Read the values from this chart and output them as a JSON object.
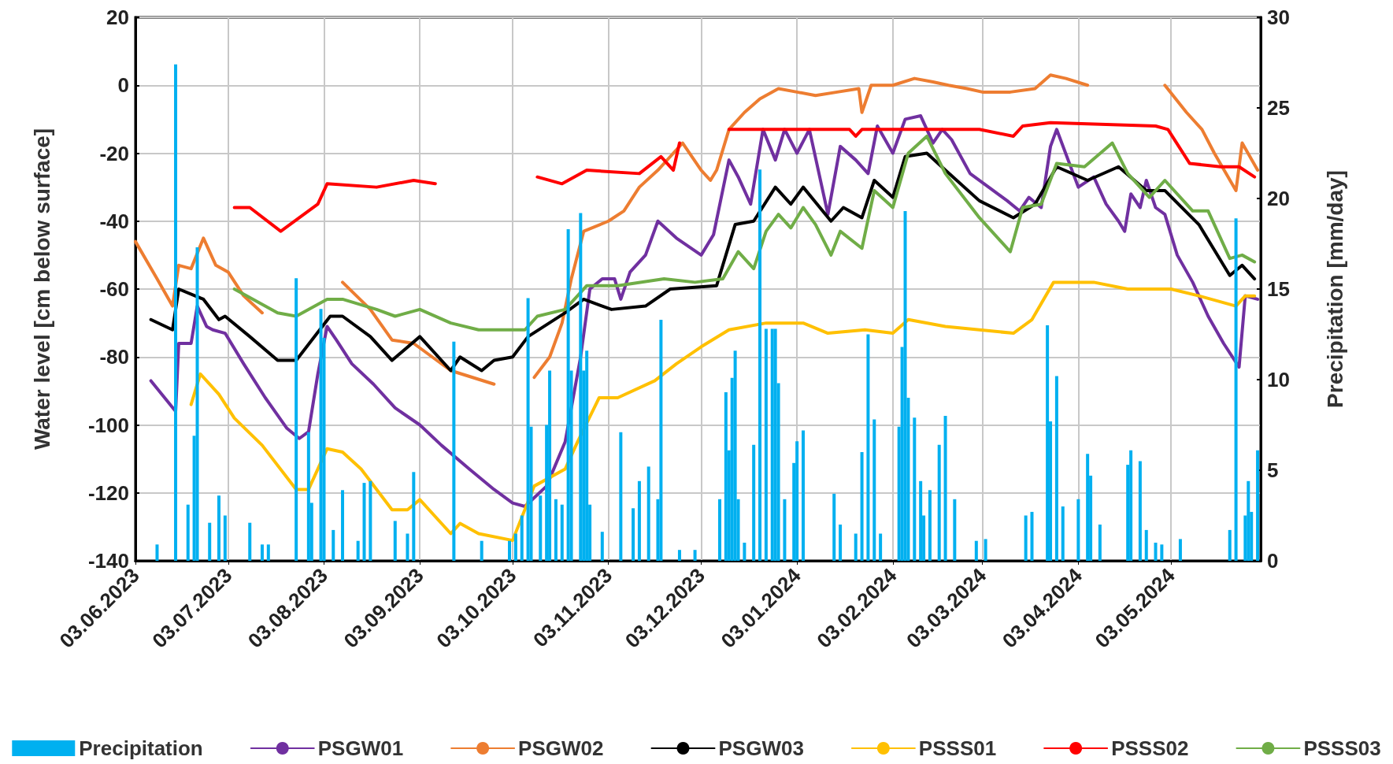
{
  "chart_data": {
    "type": "line",
    "xlabel": null,
    "ylabel": "Water level [cm below surface]",
    "y2label": "Precipitation [mm/day]",
    "xlim": [
      "2023-06-03",
      "2024-06-01"
    ],
    "xticks": [
      {
        "value": "2023-06-03",
        "label": "03.06.2023"
      },
      {
        "value": "2023-07-03",
        "label": "03.07.2023"
      },
      {
        "value": "2023-08-03",
        "label": "03.08.2023"
      },
      {
        "value": "2023-09-03",
        "label": "03.09.2023"
      },
      {
        "value": "2023-10-03",
        "label": "03.10.2023"
      },
      {
        "value": "2023-11-03",
        "label": "03.11.2023"
      },
      {
        "value": "2023-12-03",
        "label": "03.12.2023"
      },
      {
        "value": "2024-01-03",
        "label": "03.01.2024"
      },
      {
        "value": "2024-02-03",
        "label": "03.02.2024"
      },
      {
        "value": "2024-03-03",
        "label": "03.03.2024"
      },
      {
        "value": "2024-04-03",
        "label": "03.04.2024"
      },
      {
        "value": "2024-05-03",
        "label": "03.05.2024"
      }
    ],
    "ylim": [
      -140,
      20
    ],
    "yticks": [
      -140,
      -120,
      -100,
      -80,
      -60,
      -40,
      -20,
      0,
      20
    ],
    "y2lim": [
      0,
      30
    ],
    "y2ticks": [
      0,
      5,
      10,
      15,
      20,
      25,
      30
    ],
    "grid": true,
    "legend": "bottom",
    "marker": "none",
    "line_style": "solid",
    "series": [
      {
        "name": "Precipitation",
        "type": "bar",
        "axis": "y2",
        "color": "#00b0f0",
        "x": [
          "2023-06-10",
          "2023-06-16",
          "2023-06-20",
          "2023-06-22",
          "2023-06-23",
          "2023-06-27",
          "2023-06-30",
          "2023-07-02",
          "2023-07-10",
          "2023-07-14",
          "2023-07-16",
          "2023-07-25",
          "2023-07-29",
          "2023-07-30",
          "2023-08-02",
          "2023-08-03",
          "2023-08-06",
          "2023-08-09",
          "2023-08-14",
          "2023-08-16",
          "2023-08-18",
          "2023-08-26",
          "2023-08-30",
          "2023-09-01",
          "2023-09-14",
          "2023-09-23",
          "2023-10-02",
          "2023-10-04",
          "2023-10-06",
          "2023-10-08",
          "2023-10-09",
          "2023-10-12",
          "2023-10-14",
          "2023-10-15",
          "2023-10-17",
          "2023-10-19",
          "2023-10-21",
          "2023-10-22",
          "2023-10-25",
          "2023-10-26",
          "2023-10-27",
          "2023-10-28",
          "2023-11-01",
          "2023-11-07",
          "2023-11-11",
          "2023-11-13",
          "2023-11-16",
          "2023-11-19",
          "2023-11-20",
          "2023-11-26",
          "2023-12-01",
          "2023-12-09",
          "2023-12-11",
          "2023-12-12",
          "2023-12-13",
          "2023-12-14",
          "2023-12-15",
          "2023-12-17",
          "2023-12-20",
          "2023-12-22",
          "2023-12-24",
          "2023-12-26",
          "2023-12-27",
          "2023-12-28",
          "2023-12-30",
          "2024-01-02",
          "2024-01-03",
          "2024-01-05",
          "2024-01-15",
          "2024-01-17",
          "2024-01-22",
          "2024-01-24",
          "2024-01-26",
          "2024-01-28",
          "2024-01-30",
          "2024-02-05",
          "2024-02-06",
          "2024-02-07",
          "2024-02-08",
          "2024-02-10",
          "2024-02-12",
          "2024-02-13",
          "2024-02-15",
          "2024-02-18",
          "2024-02-20",
          "2024-02-23",
          "2024-03-01",
          "2024-03-04",
          "2024-03-17",
          "2024-03-19",
          "2024-03-24",
          "2024-03-25",
          "2024-03-27",
          "2024-03-29",
          "2024-04-03",
          "2024-04-06",
          "2024-04-07",
          "2024-04-10",
          "2024-04-19",
          "2024-04-20",
          "2024-04-23",
          "2024-04-25",
          "2024-04-28",
          "2024-04-30",
          "2024-05-06",
          "2024-05-22",
          "2024-05-24",
          "2024-05-27",
          "2024-05-28",
          "2024-05-29",
          "2024-05-31"
        ],
        "values": [
          0.9,
          27.4,
          3.1,
          6.9,
          17.3,
          2.1,
          3.6,
          2.5,
          2.1,
          0.9,
          0.9,
          15.6,
          7.1,
          3.2,
          13.9,
          12.3,
          1.7,
          3.9,
          1.1,
          4.3,
          4.4,
          2.2,
          1.5,
          4.9,
          12.1,
          1.1,
          1.1,
          1.5,
          2.5,
          14.5,
          7.4,
          3.6,
          7.5,
          10.5,
          3.4,
          3.1,
          18.3,
          10.5,
          19.2,
          10.5,
          11.6,
          3.1,
          1.6,
          7.1,
          2.9,
          4.4,
          5.2,
          3.4,
          13.3,
          0.6,
          0.6,
          3.4,
          9.3,
          6.1,
          10.1,
          11.6,
          3.4,
          1,
          6.4,
          21.6,
          12.8,
          12.8,
          12.8,
          9.8,
          3.4,
          5.4,
          6.6,
          7.2,
          3.7,
          2,
          1.5,
          6,
          12.5,
          7.8,
          1.5,
          7.4,
          11.8,
          19.3,
          9,
          7.9,
          4.4,
          2.5,
          3.9,
          6.4,
          8,
          3.4,
          1.1,
          1.2,
          2.5,
          2.7,
          13,
          7.7,
          10.2,
          3,
          3.4,
          5.9,
          4.7,
          2,
          5.3,
          6.1,
          5.5,
          1.7,
          1,
          0.9,
          1.2,
          1.7,
          18.9,
          2.5,
          4.4,
          2.7,
          6.1
        ]
      },
      {
        "name": "PSGW01",
        "color": "#7030a0",
        "x": [
          "2023-06-08",
          "2023-06-16",
          "2023-06-17",
          "2023-06-21",
          "2023-06-23",
          "2023-06-26",
          "2023-06-28",
          "2023-07-02",
          "2023-07-08",
          "2023-07-15",
          "2023-07-22",
          "2023-07-26",
          "2023-07-29",
          "2023-08-01",
          "2023-08-04",
          "2023-08-07",
          "2023-08-12",
          "2023-08-19",
          "2023-08-26",
          "2023-09-03",
          "2023-09-10",
          "2023-09-19",
          "2023-09-27",
          "2023-10-03",
          "2023-10-07",
          "2023-10-14",
          "2023-10-20",
          "2023-10-25",
          "2023-10-28",
          "2023-11-01",
          "2023-11-05",
          "2023-11-07",
          "2023-11-10",
          "2023-11-15",
          "2023-11-19",
          "2023-11-25",
          "2023-12-03",
          "2023-12-07",
          "2023-12-12",
          "2023-12-15",
          "2023-12-19",
          "2023-12-23",
          "2023-12-27",
          "2023-12-30",
          "2024-01-03",
          "2024-01-07",
          "2024-01-13",
          "2024-01-17",
          "2024-01-22",
          "2024-01-26",
          "2024-01-29",
          "2024-02-03",
          "2024-02-07",
          "2024-02-12",
          "2024-02-16",
          "2024-02-19",
          "2024-02-22",
          "2024-02-28",
          "2024-03-05",
          "2024-03-11",
          "2024-03-15",
          "2024-03-18",
          "2024-03-22",
          "2024-03-25",
          "2024-03-27",
          "2024-04-03",
          "2024-04-08",
          "2024-04-12",
          "2024-04-16",
          "2024-04-18",
          "2024-04-20",
          "2024-04-23",
          "2024-04-25",
          "2024-04-28",
          "2024-05-01",
          "2024-05-05",
          "2024-05-10",
          "2024-05-15",
          "2024-05-20",
          "2024-05-25",
          "2024-05-27",
          "2024-05-31"
        ],
        "values": [
          -87,
          -96,
          -76,
          -76,
          -65,
          -71,
          -72,
          -73,
          -82,
          -92,
          -101,
          -104,
          -102,
          -85,
          -71,
          -75,
          -82,
          -88,
          -95,
          -100,
          -106,
          -113,
          -119,
          -123,
          -124,
          -118,
          -105,
          -80,
          -60,
          -57,
          -57,
          -63,
          -55,
          -50,
          -40,
          -45,
          -50,
          -44,
          -22,
          -27,
          -35,
          -13,
          -22,
          -13,
          -20,
          -13,
          -38,
          -18,
          -22,
          -26,
          -12,
          -20,
          -10,
          -9,
          -17,
          -13,
          -16,
          -26,
          -30,
          -34,
          -37,
          -33,
          -36,
          -18,
          -13,
          -30,
          -27,
          -35,
          -40,
          -43,
          -32,
          -36,
          -28,
          -36,
          -38,
          -50,
          -58,
          -68,
          -76,
          -83,
          -62,
          -63
        ]
      },
      {
        "name": "PSGW02",
        "color": "#ed7d31",
        "x": [
          "2023-06-03",
          "2023-06-10",
          "2023-06-15",
          "2023-06-17",
          "2023-06-21",
          "2023-06-25",
          "2023-06-29",
          "2023-07-03",
          "2023-07-08",
          "2023-07-14",
          "2023-07-30",
          "2023-08-09",
          "2023-08-18",
          "2023-08-25",
          "2023-09-01",
          "2023-09-13",
          "2023-09-27",
          "2023-10-05",
          "2023-10-10",
          "2023-10-15",
          "2023-10-19",
          "2023-10-22",
          "2023-10-26",
          "2023-11-03",
          "2023-11-08",
          "2023-11-13",
          "2023-11-19",
          "2023-11-24",
          "2023-11-27",
          "2023-12-03",
          "2023-12-06",
          "2023-12-08",
          "2023-12-12",
          "2023-12-17",
          "2023-12-22",
          "2023-12-28",
          "2024-01-03",
          "2024-01-09",
          "2024-01-16",
          "2024-01-23",
          "2024-01-24",
          "2024-01-27",
          "2024-02-03",
          "2024-02-10",
          "2024-02-16",
          "2024-02-21",
          "2024-02-27",
          "2024-03-03",
          "2024-03-12",
          "2024-03-20",
          "2024-03-25",
          "2024-03-30",
          "2024-04-06",
          "2024-04-18",
          "2024-05-01",
          "2024-05-08",
          "2024-05-13",
          "2024-05-17",
          "2024-05-24",
          "2024-05-26",
          "2024-05-31"
        ],
        "values": [
          -46,
          -57,
          -65,
          -53,
          -54,
          -45,
          -53,
          -55,
          -62,
          -67,
          null,
          -58,
          -66,
          -75,
          -76,
          -84,
          -88,
          null,
          -86,
          -80,
          -70,
          -57,
          -43,
          -40,
          -37,
          -30,
          -25,
          -20,
          -17,
          -25,
          -28,
          -25,
          -13,
          -8,
          -4,
          -1,
          -2,
          -3,
          -2,
          -1,
          -8,
          0,
          0,
          2,
          1,
          0,
          -1,
          -2,
          -2,
          -1,
          3,
          2,
          0,
          null,
          0,
          -8,
          -13,
          -20,
          -31,
          -17,
          -25
        ]
      },
      {
        "name": "PSGW03",
        "color": "#000000",
        "x": [
          "2023-06-08",
          "2023-06-15",
          "2023-06-17",
          "2023-06-25",
          "2023-06-30",
          "2023-07-02",
          "2023-07-10",
          "2023-07-19",
          "2023-07-25",
          "2023-08-05",
          "2023-08-09",
          "2023-08-18",
          "2023-08-25",
          "2023-09-03",
          "2023-09-13",
          "2023-09-16",
          "2023-09-23",
          "2023-09-27",
          "2023-10-03",
          "2023-10-08",
          "2023-10-20",
          "2023-10-26",
          "2023-11-04",
          "2023-11-15",
          "2023-11-23",
          "2023-12-08",
          "2023-12-14",
          "2023-12-20",
          "2023-12-27",
          "2024-01-01",
          "2024-01-05",
          "2024-01-14",
          "2024-01-18",
          "2024-01-24",
          "2024-01-28",
          "2024-02-03",
          "2024-02-07",
          "2024-02-14",
          "2024-02-20",
          "2024-03-02",
          "2024-03-13",
          "2024-03-20",
          "2024-03-27",
          "2024-04-06",
          "2024-04-16",
          "2024-04-25",
          "2024-05-01",
          "2024-05-12",
          "2024-05-22",
          "2024-05-26",
          "2024-05-30"
        ],
        "values": [
          -69,
          -72,
          -60,
          -63,
          -69,
          -68,
          -74,
          -81,
          -81,
          -68,
          -68,
          -74,
          -81,
          -74,
          -84,
          -80,
          -84,
          -81,
          -80,
          -74,
          -67,
          -63,
          -66,
          -65,
          -60,
          -59,
          -41,
          -40,
          -30,
          -35,
          -30,
          -40,
          -36,
          -39,
          -28,
          -33,
          -21,
          -20,
          -25,
          -34,
          -39,
          -35,
          -24,
          -28,
          -24,
          -31,
          -31,
          -41,
          -56,
          -53,
          -57
        ]
      },
      {
        "name": "PSSS01",
        "color": "#ffc000",
        "x": [
          "2023-06-21",
          "2023-06-24",
          "2023-06-30",
          "2023-07-05",
          "2023-07-14",
          "2023-07-25",
          "2023-07-29",
          "2023-08-04",
          "2023-08-09",
          "2023-08-15",
          "2023-08-25",
          "2023-08-30",
          "2023-09-03",
          "2023-09-13",
          "2023-09-16",
          "2023-09-22",
          "2023-10-03",
          "2023-10-10",
          "2023-10-20",
          "2023-10-24",
          "2023-10-31",
          "2023-11-06",
          "2023-11-18",
          "2023-11-25",
          "2023-12-03",
          "2023-12-12",
          "2023-12-24",
          "2024-01-05",
          "2024-01-13",
          "2024-01-25",
          "2024-02-03",
          "2024-02-08",
          "2024-02-20",
          "2024-03-02",
          "2024-03-13",
          "2024-03-19",
          "2024-03-26",
          "2024-04-08",
          "2024-04-19",
          "2024-05-03",
          "2024-05-12",
          "2024-05-24",
          "2024-05-27",
          "2024-05-30"
        ],
        "values": [
          -94,
          -85,
          -91,
          -98,
          -106,
          -119,
          -119,
          -107,
          -108,
          -113,
          -125,
          -125,
          -122,
          -132,
          -129,
          -132,
          -134,
          -118,
          -113,
          -105,
          -92,
          -92,
          -87,
          -82,
          -77,
          -72,
          -70,
          -70,
          -73,
          -72,
          -73,
          -69,
          -71,
          -72,
          -73,
          -69,
          -58,
          -58,
          -60,
          -60,
          -62,
          -65,
          -62,
          -62
        ]
      },
      {
        "name": "PSSS02",
        "color": "#ff0000",
        "x": [
          "2023-07-05",
          "2023-07-10",
          "2023-07-20",
          "2023-07-26",
          "2023-08-01",
          "2023-08-04",
          "2023-08-20",
          "2023-09-01",
          "2023-09-08",
          "2023-09-25",
          "2023-10-11",
          "2023-10-19",
          "2023-10-27",
          "2023-11-13",
          "2023-11-20",
          "2023-11-24",
          "2023-11-26",
          "2023-12-05",
          "2023-12-12",
          "2024-01-20",
          "2024-01-22",
          "2024-01-24",
          "2024-03-02",
          "2024-03-13",
          "2024-03-16",
          "2024-03-25",
          "2024-04-28",
          "2024-05-02",
          "2024-05-09",
          "2024-05-19",
          "2024-05-25",
          "2024-05-30"
        ],
        "values": [
          -36,
          -36,
          -43,
          -39,
          -35,
          -29,
          -30,
          -28,
          -29,
          null,
          -27,
          -29,
          -25,
          -26,
          -21,
          -25,
          -17,
          null,
          -13,
          -13,
          -15,
          -13,
          -13,
          -15,
          -12,
          -11,
          -12,
          -13,
          -23,
          -24,
          -24,
          -27
        ]
      },
      {
        "name": "PSSS03",
        "color": "#70ad47",
        "x": [
          "2023-07-05",
          "2023-07-19",
          "2023-07-25",
          "2023-08-04",
          "2023-08-09",
          "2023-08-20",
          "2023-08-26",
          "2023-09-03",
          "2023-09-13",
          "2023-09-22",
          "2023-10-03",
          "2023-10-07",
          "2023-10-11",
          "2023-10-20",
          "2023-10-27",
          "2023-11-06",
          "2023-11-21",
          "2023-12-01",
          "2023-12-10",
          "2023-12-15",
          "2023-12-20",
          "2023-12-24",
          "2023-12-28",
          "2024-01-01",
          "2024-01-05",
          "2024-01-09",
          "2024-01-14",
          "2024-01-17",
          "2024-01-24",
          "2024-01-28",
          "2024-02-03",
          "2024-02-08",
          "2024-02-14",
          "2024-02-20",
          "2024-03-02",
          "2024-03-12",
          "2024-03-16",
          "2024-03-22",
          "2024-03-27",
          "2024-04-05",
          "2024-04-14",
          "2024-04-19",
          "2024-04-26",
          "2024-05-01",
          "2024-05-10",
          "2024-05-15",
          "2024-05-22",
          "2024-05-26",
          "2024-05-30"
        ],
        "values": [
          -60,
          -67,
          -68,
          -63,
          -63,
          -66,
          -68,
          -66,
          -70,
          -72,
          -72,
          -72,
          -68,
          -66,
          -59,
          -59,
          -57,
          -58,
          -57,
          -49,
          -54,
          -43,
          -38,
          -42,
          -36,
          -41,
          -50,
          -43,
          -48,
          -31,
          -36,
          -20,
          -15,
          -26,
          -39,
          -49,
          -36,
          -35,
          -23,
          -24,
          -17,
          -26,
          -33,
          -28,
          -37,
          -37,
          -51,
          -50,
          -52
        ]
      }
    ]
  }
}
